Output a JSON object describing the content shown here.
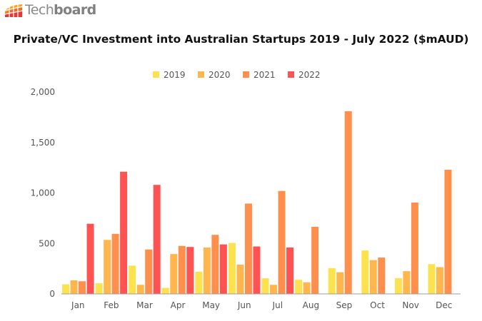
{
  "brand": {
    "name_regular": "Tech",
    "name_bold": "board"
  },
  "chart_data": {
    "type": "bar",
    "title": "Private/VC Investment into Australian Startups 2019 - July 2022 ($mAUD)",
    "categories": [
      "Jan",
      "Feb",
      "Mar",
      "Apr",
      "May",
      "Jun",
      "Jul",
      "Aug",
      "Sep",
      "Oct",
      "Nov",
      "Dec"
    ],
    "series": [
      {
        "name": "2019",
        "color": "#fde24f",
        "values": [
          95,
          105,
          280,
          60,
          220,
          505,
          155,
          140,
          255,
          430,
          155,
          295
        ]
      },
      {
        "name": "2020",
        "color": "#ffb74d",
        "values": [
          135,
          535,
          90,
          395,
          460,
          290,
          90,
          115,
          215,
          335,
          225,
          265
        ]
      },
      {
        "name": "2021",
        "color": "#ff8f4d",
        "values": [
          125,
          595,
          440,
          475,
          585,
          895,
          1020,
          665,
          1810,
          360,
          905,
          1230
        ]
      },
      {
        "name": "2022",
        "color": "#ff5252",
        "values": [
          695,
          1210,
          1080,
          465,
          490,
          470,
          460,
          null,
          null,
          null,
          null,
          null
        ]
      }
    ],
    "ylim": [
      0,
      2000
    ],
    "yticks": [
      0,
      500,
      1000,
      1500,
      2000
    ],
    "ytick_labels": [
      "0",
      "500",
      "1,000",
      "1,500",
      "2,000"
    ],
    "xlabel": "",
    "ylabel": "",
    "grid": false,
    "legend_position": "top-center"
  }
}
